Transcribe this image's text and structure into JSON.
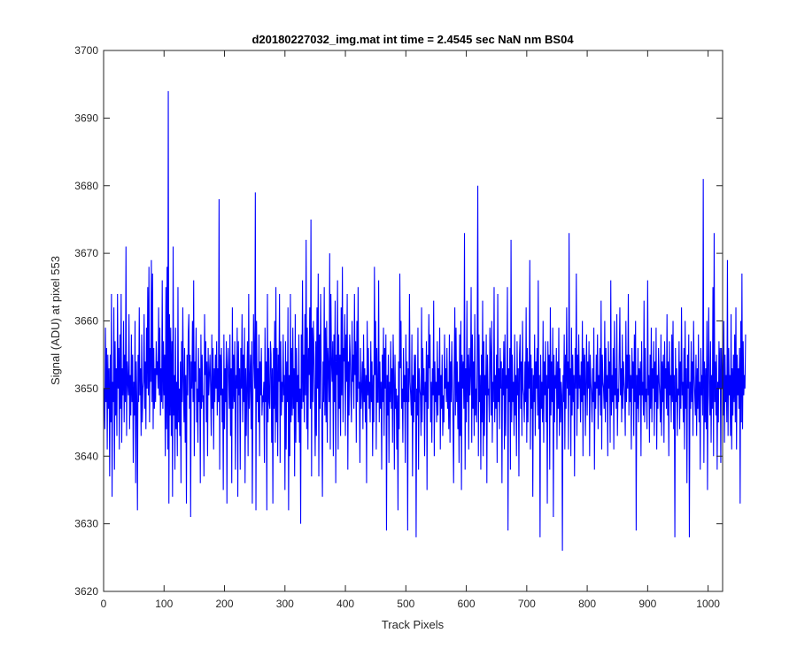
{
  "chart_data": {
    "type": "line",
    "title": "d20180227032_img.mat int time = 2.4545 sec  NaN nm BS04",
    "xlabel": "Track Pixels",
    "ylabel": "Signal (ADU) at pixel 553",
    "xlim": [
      0,
      1024
    ],
    "ylim": [
      3620,
      3700
    ],
    "x_ticks": [
      0,
      100,
      200,
      300,
      400,
      500,
      600,
      700,
      800,
      900,
      1000
    ],
    "y_ticks": [
      3620,
      3630,
      3640,
      3650,
      3660,
      3670,
      3680,
      3690,
      3700
    ],
    "grid": false,
    "legend": "none",
    "series": [
      {
        "color": "#0000ff",
        "x_start": 1,
        "x_step": 1,
        "values": [
          3650,
          3644,
          3659,
          3648,
          3656,
          3641,
          3655,
          3647,
          3653,
          3637,
          3655,
          3645,
          3664,
          3634,
          3651,
          3648,
          3662,
          3638,
          3657,
          3646,
          3653,
          3643,
          3664,
          3650,
          3656,
          3641,
          3658,
          3647,
          3664,
          3642,
          3653,
          3649,
          3660,
          3645,
          3655,
          3648,
          3671,
          3643,
          3654,
          3651,
          3649,
          3661,
          3644,
          3652,
          3646,
          3658,
          3648,
          3655,
          3639,
          3651,
          3646,
          3660,
          3636,
          3654,
          3648,
          3632,
          3655,
          3648,
          3662,
          3649,
          3653,
          3643,
          3658,
          3645,
          3650,
          3651,
          3661,
          3647,
          3654,
          3644,
          3659,
          3650,
          3665,
          3649,
          3668,
          3645,
          3656,
          3651,
          3669,
          3648,
          3667,
          3644,
          3656,
          3647,
          3653,
          3648,
          3657,
          3652,
          3654,
          3650,
          3662,
          3649,
          3659,
          3646,
          3653,
          3648,
          3666,
          3647,
          3657,
          3649,
          3655,
          3640,
          3665,
          3644,
          3668,
          3641,
          3694,
          3633,
          3661,
          3646,
          3659,
          3643,
          3657,
          3634,
          3671,
          3646,
          3652,
          3638,
          3659,
          3644,
          3651,
          3640,
          3665,
          3645,
          3650,
          3643,
          3654,
          3636,
          3657,
          3648,
          3662,
          3651,
          3645,
          3656,
          3642,
          3652,
          3633,
          3655,
          3649,
          3658,
          3661,
          3647,
          3655,
          3631,
          3654,
          3650,
          3660,
          3648,
          3666,
          3640,
          3654,
          3651,
          3659,
          3645,
          3650,
          3642,
          3656,
          3648,
          3653,
          3636,
          3658,
          3647,
          3655,
          3648,
          3649,
          3637,
          3661,
          3652,
          3657,
          3645,
          3654,
          3640,
          3656,
          3649,
          3652,
          3655,
          3650,
          3643,
          3658,
          3647,
          3656,
          3641,
          3653,
          3648,
          3655,
          3650,
          3657,
          3646,
          3653,
          3648,
          3678,
          3638,
          3655,
          3649,
          3656,
          3645,
          3650,
          3635,
          3658,
          3644,
          3653,
          3648,
          3657,
          3633,
          3653,
          3656,
          3651,
          3647,
          3658,
          3643,
          3653,
          3636,
          3662,
          3647,
          3655,
          3648,
          3657,
          3638,
          3652,
          3650,
          3659,
          3634,
          3657,
          3649,
          3653,
          3638,
          3656,
          3650,
          3661,
          3645,
          3655,
          3648,
          3659,
          3636,
          3653,
          3643,
          3651,
          3657,
          3640,
          3664,
          3647,
          3651,
          3655,
          3644,
          3657,
          3633,
          3648,
          3661,
          3654,
          3650,
          3679,
          3632,
          3660,
          3648,
          3653,
          3645,
          3658,
          3640,
          3654,
          3649,
          3656,
          3646,
          3649,
          3648,
          3651,
          3639,
          3659,
          3648,
          3654,
          3632,
          3664,
          3645,
          3656,
          3648,
          3647,
          3657,
          3655,
          3642,
          3653,
          3633,
          3656,
          3647,
          3660,
          3642,
          3665,
          3645,
          3656,
          3640,
          3655,
          3651,
          3664,
          3639,
          3657,
          3646,
          3651,
          3648,
          3658,
          3649,
          3652,
          3635,
          3657,
          3641,
          3654,
          3648,
          3662,
          3632,
          3652,
          3640,
          3664,
          3645,
          3656,
          3646,
          3659,
          3647,
          3653,
          3637,
          3661,
          3642,
          3656,
          3648,
          3652,
          3645,
          3658,
          3642,
          3650,
          3630,
          3658,
          3647,
          3666,
          3648,
          3655,
          3645,
          3661,
          3649,
          3672,
          3644,
          3659,
          3641,
          3656,
          3652,
          3662,
          3647,
          3675,
          3637,
          3659,
          3648,
          3660,
          3655,
          3649,
          3640,
          3657,
          3643,
          3662,
          3650,
          3667,
          3637,
          3658,
          3647,
          3664,
          3653,
          3645,
          3634,
          3654,
          3648,
          3665,
          3646,
          3659,
          3645,
          3660,
          3642,
          3656,
          3653,
          3648,
          3670,
          3641,
          3664,
          3654,
          3651,
          3657,
          3640,
          3658,
          3648,
          3663,
          3636,
          3655,
          3652,
          3666,
          3641,
          3658,
          3647,
          3655,
          3643,
          3662,
          3649,
          3668,
          3645,
          3656,
          3654,
          3661,
          3643,
          3658,
          3651,
          3664,
          3638,
          3654,
          3646,
          3658,
          3655,
          3649,
          3645,
          3660,
          3651,
          3655,
          3647,
          3664,
          3652,
          3657,
          3642,
          3660,
          3648,
          3665,
          3650,
          3651,
          3639,
          3656,
          3647,
          3650,
          3654,
          3644,
          3658,
          3648,
          3653,
          3645,
          3652,
          3636,
          3660,
          3649,
          3656,
          3647,
          3651,
          3645,
          3657,
          3648,
          3654,
          3640,
          3652,
          3645,
          3668,
          3652,
          3660,
          3641,
          3656,
          3648,
          3648,
          3666,
          3645,
          3654,
          3647,
          3651,
          3638,
          3655,
          3648,
          3659,
          3643,
          3656,
          3650,
          3658,
          3629,
          3652,
          3646,
          3655,
          3639,
          3651,
          3648,
          3657,
          3647,
          3653,
          3642,
          3658,
          3652,
          3638,
          3655,
          3647,
          3650,
          3641,
          3649,
          3632,
          3654,
          3644,
          3667,
          3653,
          3660,
          3647,
          3650,
          3642,
          3656,
          3648,
          3652,
          3639,
          3658,
          3648,
          3654,
          3629,
          3653,
          3648,
          3664,
          3651,
          3649,
          3646,
          3658,
          3637,
          3652,
          3645,
          3655,
          3648,
          3655,
          3628,
          3650,
          3646,
          3659,
          3638,
          3653,
          3650,
          3649,
          3643,
          3662,
          3645,
          3656,
          3649,
          3653,
          3640,
          3651,
          3648,
          3657,
          3635,
          3655,
          3647,
          3661,
          3653,
          3658,
          3645,
          3651,
          3642,
          3653,
          3649,
          3663,
          3640,
          3654,
          3648,
          3651,
          3645,
          3657,
          3646,
          3653,
          3649,
          3659,
          3641,
          3652,
          3647,
          3655,
          3643,
          3649,
          3645,
          3658,
          3650,
          3653,
          3648,
          3656,
          3647,
          3651,
          3644,
          3658,
          3642,
          3654,
          3648,
          3657,
          3650,
          3645,
          3636,
          3653,
          3662,
          3646,
          3659,
          3648,
          3654,
          3644,
          3651,
          3639,
          3658,
          3643,
          3660,
          3635,
          3655,
          3650,
          3654,
          3647,
          3673,
          3638,
          3653,
          3645,
          3663,
          3648,
          3655,
          3641,
          3656,
          3649,
          3652,
          3665,
          3642,
          3658,
          3647,
          3654,
          3643,
          3661,
          3646,
          3650,
          3645,
          3656,
          3680,
          3640,
          3658,
          3648,
          3652,
          3638,
          3655,
          3645,
          3663,
          3640,
          3657,
          3643,
          3652,
          3649,
          3658,
          3636,
          3655,
          3649,
          3650,
          3645,
          3659,
          3655,
          3646,
          3660,
          3642,
          3651,
          3648,
          3665,
          3645,
          3652,
          3647,
          3655,
          3639,
          3664,
          3648,
          3653,
          3644,
          3656,
          3650,
          3654,
          3636,
          3653,
          3649,
          3657,
          3641,
          3658,
          3643,
          3652,
          3650,
          3665,
          3629,
          3653,
          3648,
          3656,
          3638,
          3672,
          3645,
          3655,
          3648,
          3651,
          3643,
          3658,
          3646,
          3652,
          3640,
          3657,
          3649,
          3653,
          3637,
          3655,
          3658,
          3647,
          3654,
          3643,
          3660,
          3650,
          3649,
          3645,
          3654,
          3648,
          3662,
          3642,
          3656,
          3645,
          3654,
          3650,
          3669,
          3641,
          3655,
          3647,
          3653,
          3634,
          3652,
          3648,
          3658,
          3643,
          3654,
          3650,
          3656,
          3646,
          3666,
          3644,
          3652,
          3628,
          3655,
          3647,
          3651,
          3645,
          3660,
          3642,
          3654,
          3649,
          3657,
          3645,
          3652,
          3633,
          3657,
          3650,
          3655,
          3638,
          3662,
          3646,
          3654,
          3648,
          3659,
          3631,
          3655,
          3645,
          3652,
          3650,
          3656,
          3641,
          3654,
          3647,
          3659,
          3643,
          3653,
          3645,
          3651,
          3649,
          3626,
          3652,
          3648,
          3658,
          3641,
          3655,
          3647,
          3662,
          3650,
          3654,
          3641,
          3673,
          3649,
          3653,
          3640,
          3659,
          3646,
          3655,
          3648,
          3652,
          3637,
          3656,
          3650,
          3667,
          3643,
          3655,
          3647,
          3658,
          3650,
          3652,
          3645,
          3654,
          3648,
          3660,
          3640,
          3656,
          3649,
          3655,
          3643,
          3651,
          3658,
          3646,
          3654,
          3650,
          3657,
          3640,
          3655,
          3651,
          3649,
          3645,
          3653,
          3648,
          3659,
          3638,
          3651,
          3647,
          3655,
          3650,
          3658,
          3644,
          3652,
          3649,
          3656,
          3646,
          3663,
          3641,
          3655,
          3651,
          3650,
          3647,
          3660,
          3645,
          3656,
          3648,
          3652,
          3640,
          3657,
          3650,
          3654,
          3642,
          3666,
          3646,
          3652,
          3648,
          3656,
          3641,
          3660,
          3649,
          3653,
          3647,
          3661,
          3643,
          3650,
          3648,
          3655,
          3662,
          3649,
          3653,
          3645,
          3658,
          3647,
          3654,
          3651,
          3649,
          3643,
          3660,
          3648,
          3655,
          3650,
          3664,
          3646,
          3655,
          3648,
          3652,
          3641,
          3656,
          3650,
          3654,
          3643,
          3658,
          3648,
          3660,
          3629,
          3652,
          3647,
          3656,
          3645,
          3653,
          3649,
          3654,
          3640,
          3657,
          3649,
          3651,
          3646,
          3663,
          3645,
          3656,
          3648,
          3650,
          3644,
          3666,
          3649,
          3652,
          3642,
          3655,
          3647,
          3659,
          3645,
          3653,
          3650,
          3657,
          3643,
          3654,
          3648,
          3659,
          3641,
          3652,
          3647,
          3656,
          3651,
          3649,
          3645,
          3658,
          3643,
          3654,
          3648,
          3655,
          3642,
          3657,
          3650,
          3653,
          3647,
          3661,
          3646,
          3654,
          3640,
          3657,
          3649,
          3652,
          3645,
          3658,
          3648,
          3660,
          3644,
          3652,
          3628,
          3656,
          3648,
          3653,
          3643,
          3650,
          3649,
          3657,
          3644,
          3654,
          3647,
          3662,
          3649,
          3651,
          3645,
          3656,
          3641,
          3660,
          3647,
          3653,
          3636,
          3655,
          3650,
          3658,
          3628,
          3651,
          3647,
          3657,
          3648,
          3654,
          3643,
          3660,
          3652,
          3649,
          3646,
          3655,
          3643,
          3653,
          3647,
          3658,
          3645,
          3651,
          3638,
          3656,
          3649,
          3652,
          3646,
          3681,
          3639,
          3654,
          3645,
          3653,
          3644,
          3660,
          3635,
          3653,
          3662,
          3649,
          3646,
          3657,
          3642,
          3652,
          3647,
          3665,
          3640,
          3673,
          3648,
          3654,
          3646,
          3655,
          3638,
          3651,
          3645,
          3657,
          3650,
          3656,
          3639,
          3656,
          3650,
          3653,
          3646,
          3660,
          3642,
          3655,
          3648,
          3652,
          3645,
          3669,
          3643,
          3656,
          3649,
          3652,
          3643,
          3661,
          3641,
          3653,
          3646,
          3655,
          3648,
          3658,
          3645,
          3662,
          3641,
          3655,
          3649,
          3653,
          3647,
          3656,
          3633,
          3660,
          3645,
          3667,
          3644,
          3657,
          3649,
          3652,
          3650,
          3658
        ]
      }
    ]
  }
}
